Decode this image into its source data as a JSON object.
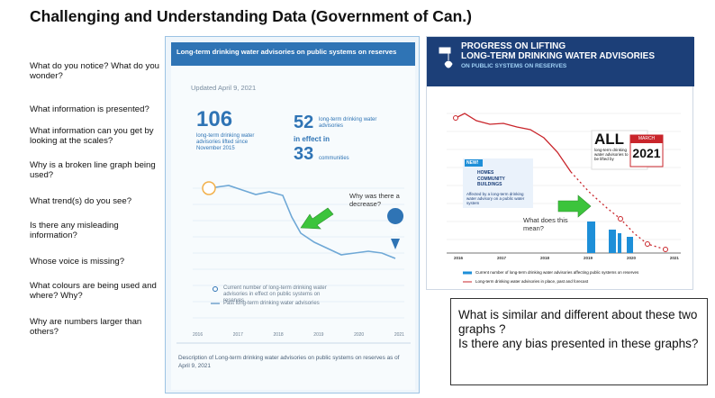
{
  "title": "Challenging and Understanding Data (Government of Can.)",
  "questions": [
    "What do you notice? What do you wonder?",
    "What information is presented?",
    "What information can you get by looking at the scales?",
    "Why is a broken line graph being used?",
    "What trend(s) do you see?",
    "Is there any misleading information?",
    "Whose voice is missing?",
    "What colours are being used and where? Why?",
    "Why are numbers larger than others?"
  ],
  "left_graphic": {
    "header": "Long-term drinking water advisories on public systems on reserves",
    "updated": "Updated April 9, 2021",
    "stat1_number": "106",
    "stat1_text": "long-term drinking water advisories lifted since November 2015",
    "stat2_number": "52",
    "stat2_text": "long-term drinking water advisories",
    "stat2_suffix": "in effect in",
    "stat3_number": "33",
    "stat3_text": "communities",
    "marker": "52",
    "x_labels": [
      "2016",
      "2017",
      "2018",
      "2019",
      "2020",
      "2021"
    ],
    "legend": [
      "Current number of long-term drinking water advisories in effect on public systems on reserves",
      "Past long-term drinking water advisories"
    ],
    "caption": "Description of Long-term drinking water advisories on public systems on reserves as of April 9, 2021"
  },
  "right_graphic": {
    "title_line1": "PROGRESS ON LIFTING",
    "title_line2": "LONG-TERM DRINKING WATER ADVISORIES",
    "subtitle": "ON PUBLIC SYSTEMS ON RESERVES",
    "badge_all": "ALL",
    "badge_text": "long-term drinking water advisories to be lifted by",
    "badge_month": "MARCH",
    "badge_year": "2021",
    "new_label": "NEW!",
    "homes": "HOMES",
    "community": "COMMUNITY BUILDINGS",
    "new_text": "Affected by a long-term drinking water advisory on a public water system",
    "x_labels": [
      "2016",
      "2017",
      "2018",
      "2019",
      "2020",
      "2021"
    ],
    "legend": [
      "Current number of long-term drinking water advisories affecting public systems on reserves",
      "Long-term drinking water advisories in place, past and forecast"
    ]
  },
  "annotations": [
    "Why was there a decrease?",
    "What does this mean?"
  ],
  "box": [
    "What is similar and different about these two graphs ?",
    "Is there any bias presented in these graphs?"
  ]
}
